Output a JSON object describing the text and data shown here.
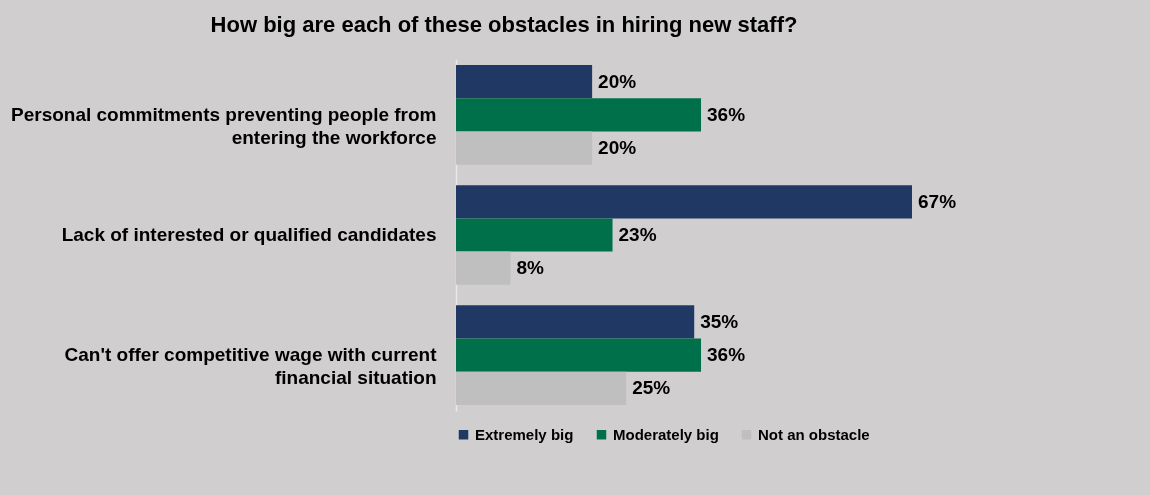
{
  "chart_data": {
    "type": "bar",
    "orientation": "horizontal",
    "title": "How big are each of these obstacles in hiring new staff?",
    "categories": [
      "Personal commitments preventing people from entering the workforce",
      "Lack of interested or qualified candidates",
      "Can't offer competitive wage with current financial situation"
    ],
    "series": [
      {
        "name": "Extremely big",
        "color": "#1f3864",
        "values": [
          20,
          67,
          35
        ],
        "value_labels": [
          "20%",
          "67%",
          "35%"
        ]
      },
      {
        "name": "Moderately big",
        "color": "#00704a",
        "values": [
          36,
          23,
          36
        ],
        "value_labels": [
          "36%",
          "23%",
          "36%"
        ]
      },
      {
        "name": "Not an obstacle",
        "color": "#bfbfbf",
        "values": [
          20,
          8,
          25
        ],
        "value_labels": [
          "20%",
          "8%",
          "25%"
        ]
      }
    ],
    "legend": "bottom"
  }
}
